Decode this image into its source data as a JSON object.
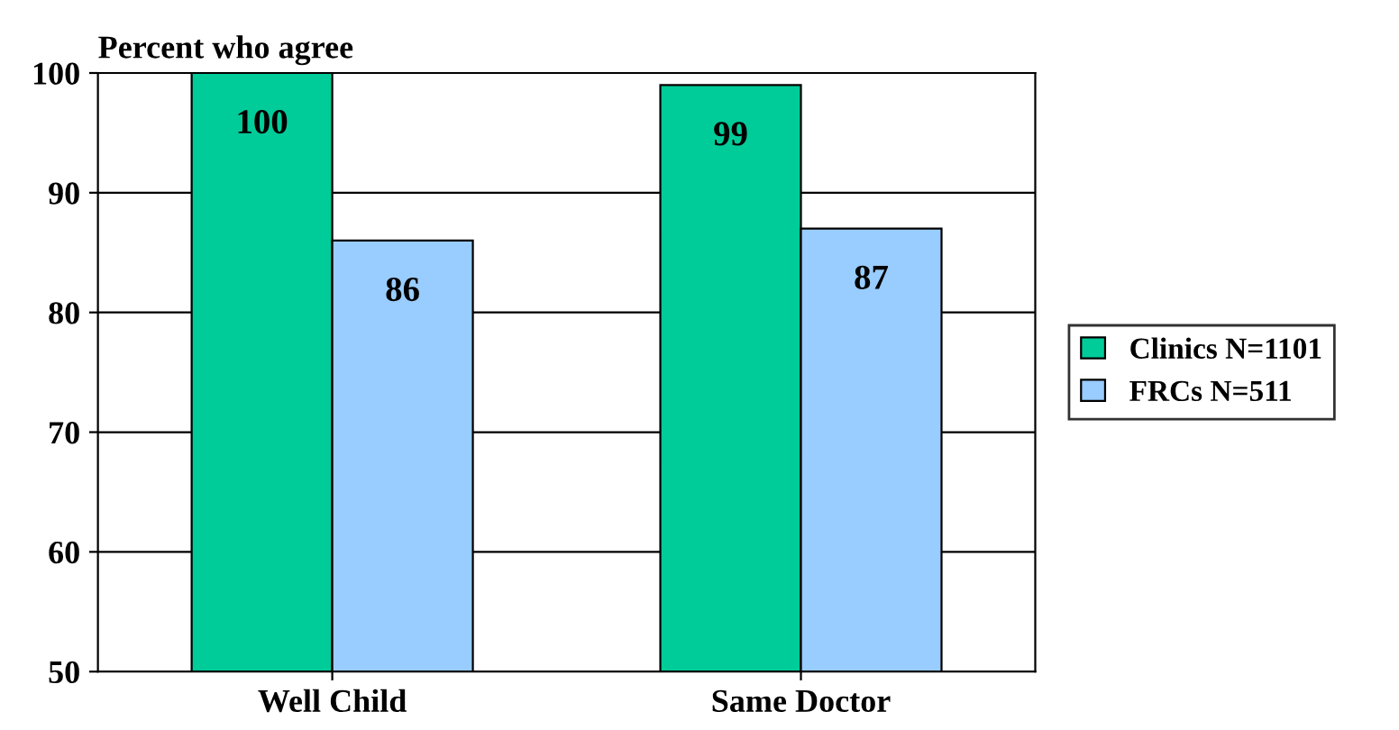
{
  "chart_data": {
    "type": "bar",
    "title": "Percent who agree",
    "categories": [
      "Well Child",
      "Same Doctor"
    ],
    "series": [
      {
        "name": "Clinics N=1101",
        "color": "#00cc99",
        "values": [
          100,
          99
        ]
      },
      {
        "name": "FRCs N=511",
        "color": "#99ccff",
        "values": [
          86,
          87
        ]
      }
    ],
    "ylim": [
      50,
      100
    ],
    "yticks": [
      50,
      60,
      70,
      80,
      90,
      100
    ],
    "grid": "y",
    "legend": "right",
    "data_labels": true
  }
}
